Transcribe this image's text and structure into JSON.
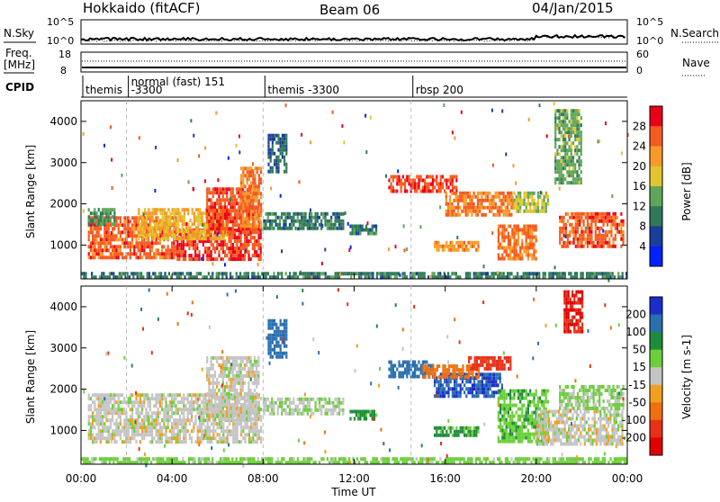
{
  "header": {
    "station": "Hokkaido (fitACF)",
    "beam": "Beam 06",
    "date": "04/Jan/2015"
  },
  "top_panels": {
    "nsky_label": "N.Sky",
    "nsearch_label": "N.Search",
    "freq_label_1": "Freq.",
    "freq_label_2": "[MHz]",
    "nave_label": "Nave",
    "cpid_label": "CPID",
    "left_top_tick": "10^5",
    "left_bot_tick": "10^0",
    "right_top_tick": "10^5",
    "right_bot_tick": "10^0",
    "freq_top_tick": "18",
    "freq_bot_tick": "8",
    "nave_top_tick": "60",
    "nave_bot_tick": "0"
  },
  "cpid": [
    {
      "label_1": "themis",
      "label_2": "",
      "start_hour": 0.0
    },
    {
      "label_1": "normal (fast) 151",
      "label_2": "-3300",
      "start_hour": 2.0
    },
    {
      "label_1": "themis -3300",
      "label_2": "",
      "start_hour": 8.0
    },
    {
      "label_1": "rbsp 200",
      "label_2": "",
      "start_hour": 14.5
    }
  ],
  "axes": {
    "ylabel_power": "Slant Range [km]",
    "ylabel_velocity": "Slant Range [km]",
    "xlabel": "Time UT",
    "yticks": [
      "4000",
      "3000",
      "2000",
      "1000"
    ],
    "xticks": [
      "00:00",
      "04:00",
      "08:00",
      "12:00",
      "16:00",
      "20:00",
      "00:00"
    ]
  },
  "colorbars": {
    "power": {
      "label": "Power [dB]",
      "ticks": [
        "28",
        "24",
        "20",
        "16",
        "12",
        "8",
        "4"
      ],
      "colors": [
        "#e8001a",
        "#f55a1e",
        "#f79a28",
        "#e2c52e",
        "#5fa65a",
        "#2f7a56",
        "#1a3f9a",
        "#0022ff"
      ]
    },
    "velocity": {
      "label": "Velocity [m s-1]",
      "ticks": [
        "200",
        "100",
        "50",
        "15",
        "-15",
        "-50",
        "-100",
        "-200"
      ],
      "colors": [
        "#1a2fc9",
        "#2a6fb0",
        "#1e8c3c",
        "#6ccf3a",
        "#c4c4c4",
        "#f0a020",
        "#f07010",
        "#e83018",
        "#e00000"
      ]
    }
  },
  "chart_data": {
    "type": "heatmap",
    "title": "Hokkaido (fitACF) Beam 06 04/Jan/2015",
    "xlabel": "Time UT",
    "xlim_hours": [
      0,
      24
    ],
    "ylabel": "Slant Range [km]",
    "ylim_km": [
      180,
      4500
    ],
    "grid": false,
    "panels": [
      {
        "name": "Power [dB]",
        "colorbar_range": [
          0,
          32
        ],
        "regions": [
          {
            "t": [
              0.3,
              4.2
            ],
            "r": [
              700,
              1700
            ],
            "value": 26
          },
          {
            "t": [
              4.2,
              7.9
            ],
            "r": [
              700,
              1400
            ],
            "value": 28
          },
          {
            "t": [
              0.3,
              1.5
            ],
            "r": [
              1500,
              1900
            ],
            "value": 12
          },
          {
            "t": [
              2.5,
              6.5
            ],
            "r": [
              1200,
              1900
            ],
            "value": 20
          },
          {
            "t": [
              5.5,
              7.8
            ],
            "r": [
              1300,
              2400
            ],
            "value": 27
          },
          {
            "t": [
              7.0,
              7.9
            ],
            "r": [
              1500,
              2900
            ],
            "value": 24
          },
          {
            "t": [
              8.0,
              11.5
            ],
            "r": [
              1400,
              1800
            ],
            "value": 10
          },
          {
            "t": [
              8.2,
              9.0
            ],
            "r": [
              2800,
              3700
            ],
            "value": 8
          },
          {
            "t": [
              11.8,
              13.0
            ],
            "r": [
              1300,
              1500
            ],
            "value": 10
          },
          {
            "t": [
              13.5,
              16.5
            ],
            "r": [
              2300,
              2700
            ],
            "value": 27
          },
          {
            "t": [
              16.0,
              19.0
            ],
            "r": [
              1700,
              2300
            ],
            "value": 24
          },
          {
            "t": [
              15.5,
              17.5
            ],
            "r": [
              900,
              1100
            ],
            "value": 22
          },
          {
            "t": [
              19.0,
              20.5
            ],
            "r": [
              1800,
              2300
            ],
            "value": 17
          },
          {
            "t": [
              18.3,
              20.0
            ],
            "r": [
              700,
              1500
            ],
            "value": 25
          },
          {
            "t": [
              21.0,
              23.8
            ],
            "r": [
              1000,
              1800
            ],
            "value": 26
          },
          {
            "t": [
              20.8,
              22.0
            ],
            "r": [
              2500,
              4300
            ],
            "value": 14
          },
          {
            "t": [
              0.0,
              24.0
            ],
            "r": [
              180,
              350
            ],
            "value": 10
          }
        ]
      },
      {
        "name": "Velocity [m s-1]",
        "colorbar_range": [
          -200,
          200
        ],
        "regions": [
          {
            "t": [
              0.3,
              7.9
            ],
            "r": [
              700,
              1900
            ],
            "value": 0
          },
          {
            "t": [
              5.5,
              7.8
            ],
            "r": [
              1300,
              2800
            ],
            "value": 0
          },
          {
            "t": [
              8.2,
              9.0
            ],
            "r": [
              2800,
              3700
            ],
            "value": 120
          },
          {
            "t": [
              8.0,
              11.5
            ],
            "r": [
              1400,
              1800
            ],
            "value": 10
          },
          {
            "t": [
              11.8,
              13.0
            ],
            "r": [
              1300,
              1500
            ],
            "value": 60
          },
          {
            "t": [
              13.5,
              15.5
            ],
            "r": [
              2300,
              2700
            ],
            "value": 180
          },
          {
            "t": [
              15.5,
              18.5
            ],
            "r": [
              1800,
              2400
            ],
            "value": 200
          },
          {
            "t": [
              15.0,
              17.5
            ],
            "r": [
              2300,
              2600
            ],
            "value": -80
          },
          {
            "t": [
              17.0,
              19.0
            ],
            "r": [
              2500,
              2800
            ],
            "value": -120
          },
          {
            "t": [
              15.5,
              17.5
            ],
            "r": [
              900,
              1100
            ],
            "value": 60
          },
          {
            "t": [
              18.3,
              20.5
            ],
            "r": [
              700,
              2000
            ],
            "value": 40
          },
          {
            "t": [
              20.0,
              23.8
            ],
            "r": [
              700,
              1500
            ],
            "value": 0
          },
          {
            "t": [
              21.0,
              23.8
            ],
            "r": [
              1500,
              2100
            ],
            "value": 20
          },
          {
            "t": [
              21.2,
              22.0
            ],
            "r": [
              3400,
              4400
            ],
            "value": -200
          },
          {
            "t": [
              0.0,
              24.0
            ],
            "r": [
              180,
              350
            ],
            "value": 30
          }
        ]
      }
    ]
  }
}
